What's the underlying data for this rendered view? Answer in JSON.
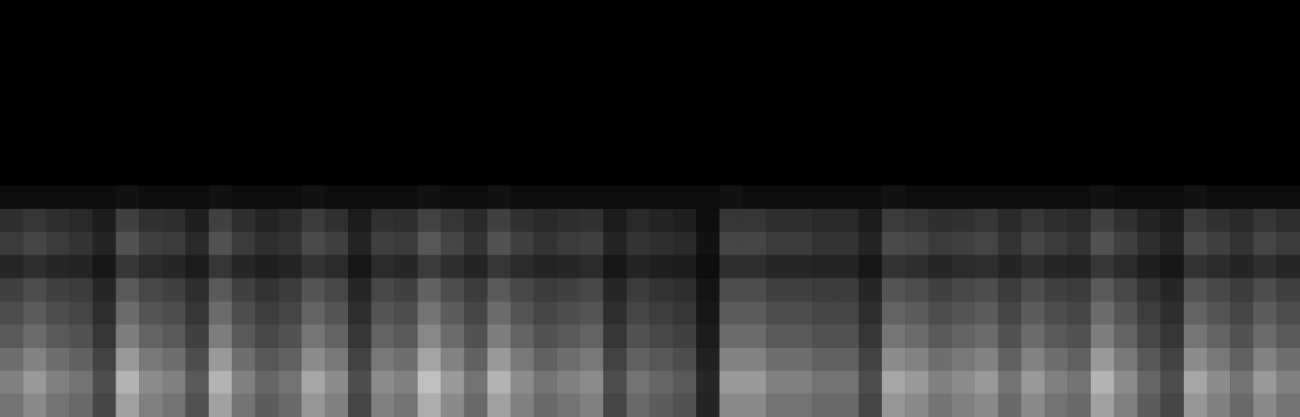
{
  "chart_data": {
    "type": "heatmap",
    "tick_labels": false,
    "grid": false,
    "value_range": [
      0,
      1
    ],
    "cells": [
      [
        0.45,
        0.54,
        0.45,
        0.41,
        0.27,
        0.63,
        0.5,
        0.45,
        0.32,
        0.63,
        0.45,
        0.36,
        0.41,
        0.59,
        0.5,
        0.27,
        0.5,
        0.45,
        0.68,
        0.54,
        0.41,
        0.63,
        0.5,
        0.41,
        0.45,
        0.5,
        0.27,
        0.41,
        0.36,
        0.32,
        0.14,
        0.54,
        0.54,
        0.45,
        0.45,
        0.41,
        0.41,
        0.27,
        0.59,
        0.54,
        0.45,
        0.5,
        0.54,
        0.41,
        0.54,
        0.45,
        0.41,
        0.63,
        0.5,
        0.36,
        0.27,
        0.59,
        0.5,
        0.41,
        0.54,
        0.45
      ],
      [
        0.5,
        0.6,
        0.5,
        0.45,
        0.3,
        0.7,
        0.55,
        0.5,
        0.35,
        0.7,
        0.5,
        0.4,
        0.45,
        0.65,
        0.55,
        0.3,
        0.55,
        0.5,
        0.75,
        0.6,
        0.45,
        0.7,
        0.55,
        0.45,
        0.5,
        0.55,
        0.3,
        0.45,
        0.4,
        0.35,
        0.15,
        0.6,
        0.6,
        0.5,
        0.5,
        0.45,
        0.45,
        0.3,
        0.65,
        0.6,
        0.5,
        0.55,
        0.6,
        0.45,
        0.6,
        0.5,
        0.45,
        0.7,
        0.55,
        0.4,
        0.3,
        0.65,
        0.55,
        0.45,
        0.6,
        0.5
      ],
      [
        0.43,
        0.51,
        0.43,
        0.38,
        0.26,
        0.6,
        0.47,
        0.43,
        0.3,
        0.6,
        0.43,
        0.34,
        0.38,
        0.55,
        0.47,
        0.26,
        0.47,
        0.43,
        0.64,
        0.51,
        0.38,
        0.6,
        0.47,
        0.38,
        0.43,
        0.47,
        0.26,
        0.38,
        0.34,
        0.3,
        0.13,
        0.51,
        0.51,
        0.43,
        0.43,
        0.38,
        0.38,
        0.26,
        0.55,
        0.51,
        0.43,
        0.47,
        0.51,
        0.38,
        0.51,
        0.43,
        0.38,
        0.6,
        0.47,
        0.34,
        0.26,
        0.55,
        0.47,
        0.38,
        0.51,
        0.43
      ],
      [
        0.35,
        0.42,
        0.35,
        0.32,
        0.21,
        0.49,
        0.39,
        0.35,
        0.25,
        0.49,
        0.35,
        0.28,
        0.32,
        0.46,
        0.39,
        0.21,
        0.39,
        0.35,
        0.53,
        0.42,
        0.32,
        0.49,
        0.39,
        0.32,
        0.35,
        0.39,
        0.21,
        0.32,
        0.28,
        0.25,
        0.11,
        0.42,
        0.42,
        0.35,
        0.35,
        0.32,
        0.32,
        0.21,
        0.46,
        0.42,
        0.35,
        0.39,
        0.42,
        0.32,
        0.42,
        0.35,
        0.32,
        0.49,
        0.39,
        0.28,
        0.21,
        0.46,
        0.39,
        0.32,
        0.42,
        0.35
      ],
      [
        0.3,
        0.36,
        0.3,
        0.27,
        0.18,
        0.42,
        0.33,
        0.3,
        0.21,
        0.42,
        0.3,
        0.24,
        0.27,
        0.39,
        0.33,
        0.18,
        0.33,
        0.3,
        0.45,
        0.36,
        0.27,
        0.42,
        0.33,
        0.27,
        0.3,
        0.33,
        0.18,
        0.27,
        0.24,
        0.21,
        0.09,
        0.36,
        0.36,
        0.3,
        0.3,
        0.27,
        0.27,
        0.18,
        0.39,
        0.36,
        0.3,
        0.33,
        0.36,
        0.27,
        0.36,
        0.3,
        0.27,
        0.42,
        0.33,
        0.24,
        0.18,
        0.39,
        0.33,
        0.27,
        0.36,
        0.3
      ],
      [
        0.25,
        0.3,
        0.25,
        0.23,
        0.15,
        0.35,
        0.28,
        0.25,
        0.18,
        0.35,
        0.25,
        0.2,
        0.23,
        0.33,
        0.28,
        0.15,
        0.28,
        0.25,
        0.38,
        0.3,
        0.23,
        0.35,
        0.28,
        0.23,
        0.25,
        0.28,
        0.15,
        0.23,
        0.2,
        0.18,
        0.08,
        0.3,
        0.3,
        0.25,
        0.25,
        0.23,
        0.23,
        0.15,
        0.33,
        0.3,
        0.25,
        0.28,
        0.3,
        0.23,
        0.3,
        0.25,
        0.23,
        0.35,
        0.28,
        0.2,
        0.15,
        0.33,
        0.28,
        0.23,
        0.3,
        0.25
      ],
      [
        0.15,
        0.18,
        0.15,
        0.14,
        0.09,
        0.21,
        0.17,
        0.15,
        0.11,
        0.21,
        0.15,
        0.12,
        0.14,
        0.2,
        0.17,
        0.09,
        0.17,
        0.15,
        0.23,
        0.18,
        0.14,
        0.21,
        0.17,
        0.14,
        0.15,
        0.17,
        0.09,
        0.14,
        0.12,
        0.11,
        0.05,
        0.18,
        0.18,
        0.15,
        0.15,
        0.14,
        0.14,
        0.09,
        0.2,
        0.18,
        0.15,
        0.17,
        0.18,
        0.14,
        0.18,
        0.15,
        0.14,
        0.21,
        0.17,
        0.12,
        0.09,
        0.2,
        0.17,
        0.14,
        0.18,
        0.15
      ],
      [
        0.23,
        0.27,
        0.23,
        0.2,
        0.14,
        0.32,
        0.25,
        0.23,
        0.16,
        0.32,
        0.23,
        0.18,
        0.2,
        0.29,
        0.25,
        0.14,
        0.25,
        0.23,
        0.34,
        0.27,
        0.2,
        0.32,
        0.25,
        0.2,
        0.23,
        0.25,
        0.14,
        0.2,
        0.18,
        0.16,
        0.07,
        0.27,
        0.27,
        0.23,
        0.23,
        0.2,
        0.2,
        0.14,
        0.29,
        0.27,
        0.23,
        0.25,
        0.27,
        0.2,
        0.27,
        0.23,
        0.2,
        0.32,
        0.25,
        0.18,
        0.14,
        0.29,
        0.25,
        0.2,
        0.27,
        0.23
      ],
      [
        0.18,
        0.21,
        0.18,
        0.16,
        0.11,
        0.25,
        0.19,
        0.18,
        0.12,
        0.25,
        0.18,
        0.14,
        0.16,
        0.23,
        0.19,
        0.11,
        0.19,
        0.18,
        0.26,
        0.21,
        0.16,
        0.25,
        0.19,
        0.16,
        0.18,
        0.19,
        0.11,
        0.16,
        0.14,
        0.12,
        0.05,
        0.21,
        0.21,
        0.18,
        0.18,
        0.16,
        0.16,
        0.11,
        0.23,
        0.21,
        0.18,
        0.19,
        0.21,
        0.16,
        0.21,
        0.18,
        0.16,
        0.25,
        0.19,
        0.14,
        0.11,
        0.23,
        0.19,
        0.16,
        0.21,
        0.18
      ],
      [
        0.05,
        0.05,
        0.05,
        0.05,
        0.05,
        0.07,
        0.05,
        0.05,
        0.05,
        0.07,
        0.05,
        0.05,
        0.05,
        0.07,
        0.05,
        0.05,
        0.05,
        0.05,
        0.07,
        0.05,
        0.05,
        0.07,
        0.05,
        0.05,
        0.05,
        0.05,
        0.05,
        0.05,
        0.05,
        0.05,
        0.05,
        0.07,
        0.05,
        0.05,
        0.05,
        0.05,
        0.05,
        0.05,
        0.07,
        0.05,
        0.05,
        0.05,
        0.05,
        0.05,
        0.05,
        0.05,
        0.05,
        0.07,
        0.05,
        0.05,
        0.05,
        0.07,
        0.05,
        0.05,
        0.05,
        0.05
      ],
      [
        0,
        0,
        0,
        0,
        0,
        0,
        0,
        0,
        0,
        0,
        0,
        0,
        0,
        0,
        0,
        0,
        0,
        0,
        0,
        0,
        0,
        0,
        0,
        0,
        0,
        0,
        0,
        0,
        0,
        0,
        0,
        0,
        0,
        0,
        0,
        0,
        0,
        0,
        0,
        0,
        0,
        0,
        0,
        0,
        0,
        0,
        0,
        0,
        0,
        0,
        0,
        0,
        0,
        0,
        0,
        0
      ],
      [
        0,
        0,
        0,
        0,
        0,
        0,
        0,
        0,
        0,
        0,
        0,
        0,
        0,
        0,
        0,
        0,
        0,
        0,
        0,
        0,
        0,
        0,
        0,
        0,
        0,
        0,
        0,
        0,
        0,
        0,
        0,
        0,
        0,
        0,
        0,
        0,
        0,
        0,
        0,
        0,
        0,
        0,
        0,
        0,
        0,
        0,
        0,
        0,
        0,
        0,
        0,
        0,
        0,
        0,
        0,
        0
      ],
      [
        0,
        0,
        0,
        0,
        0,
        0,
        0,
        0,
        0,
        0,
        0,
        0,
        0,
        0,
        0,
        0,
        0,
        0,
        0,
        0,
        0,
        0,
        0,
        0,
        0,
        0,
        0,
        0,
        0,
        0,
        0,
        0,
        0,
        0,
        0,
        0,
        0,
        0,
        0,
        0,
        0,
        0,
        0,
        0,
        0,
        0,
        0,
        0,
        0,
        0,
        0,
        0,
        0,
        0,
        0,
        0
      ],
      [
        0,
        0,
        0,
        0,
        0,
        0,
        0,
        0,
        0,
        0,
        0,
        0,
        0,
        0,
        0,
        0,
        0,
        0,
        0,
        0,
        0,
        0,
        0,
        0,
        0,
        0,
        0,
        0,
        0,
        0,
        0,
        0,
        0,
        0,
        0,
        0,
        0,
        0,
        0,
        0,
        0,
        0,
        0,
        0,
        0,
        0,
        0,
        0,
        0,
        0,
        0,
        0,
        0,
        0,
        0,
        0
      ],
      [
        0,
        0,
        0,
        0,
        0,
        0,
        0,
        0,
        0,
        0,
        0,
        0,
        0,
        0,
        0,
        0,
        0,
        0,
        0,
        0,
        0,
        0,
        0,
        0,
        0,
        0,
        0,
        0,
        0,
        0,
        0,
        0,
        0,
        0,
        0,
        0,
        0,
        0,
        0,
        0,
        0,
        0,
        0,
        0,
        0,
        0,
        0,
        0,
        0,
        0,
        0,
        0,
        0,
        0,
        0,
        0
      ],
      [
        0,
        0,
        0,
        0,
        0,
        0,
        0,
        0,
        0,
        0,
        0,
        0,
        0,
        0,
        0,
        0,
        0,
        0,
        0,
        0,
        0,
        0,
        0,
        0,
        0,
        0,
        0,
        0,
        0,
        0,
        0,
        0,
        0,
        0,
        0,
        0,
        0,
        0,
        0,
        0,
        0,
        0,
        0,
        0,
        0,
        0,
        0,
        0,
        0,
        0,
        0,
        0,
        0,
        0,
        0,
        0
      ],
      [
        0,
        0,
        0,
        0,
        0,
        0,
        0,
        0,
        0,
        0,
        0,
        0,
        0,
        0,
        0,
        0,
        0,
        0,
        0,
        0,
        0,
        0,
        0,
        0,
        0,
        0,
        0,
        0,
        0,
        0,
        0,
        0,
        0,
        0,
        0,
        0,
        0,
        0,
        0,
        0,
        0,
        0,
        0,
        0,
        0,
        0,
        0,
        0,
        0,
        0,
        0,
        0,
        0,
        0,
        0,
        0
      ],
      [
        0,
        0,
        0,
        0,
        0,
        0,
        0,
        0,
        0,
        0,
        0,
        0,
        0,
        0,
        0,
        0,
        0,
        0,
        0,
        0,
        0,
        0,
        0,
        0,
        0,
        0,
        0,
        0,
        0,
        0,
        0,
        0,
        0,
        0,
        0,
        0,
        0,
        0,
        0,
        0,
        0,
        0,
        0,
        0,
        0,
        0,
        0,
        0,
        0,
        0,
        0,
        0,
        0,
        0,
        0,
        0
      ]
    ]
  }
}
